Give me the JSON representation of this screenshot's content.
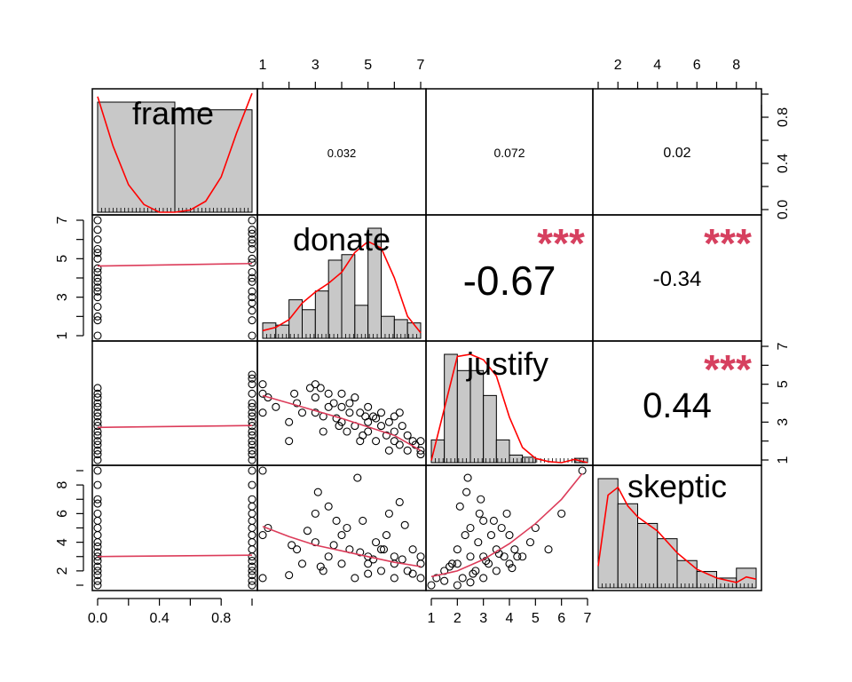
{
  "chart_data": {
    "type": "scatter",
    "title": "",
    "variables": [
      "frame",
      "donate",
      "justify",
      "skeptic"
    ],
    "ranges": {
      "frame": [
        0,
        1
      ],
      "donate": [
        1,
        7
      ],
      "justify": [
        1,
        7
      ],
      "skeptic": [
        1,
        9
      ]
    },
    "ticks": {
      "frame": [
        "0.0",
        "0.4",
        "0.8"
      ],
      "donate": [
        "1",
        "3",
        "5",
        "7"
      ],
      "justify": [
        "1",
        "2",
        "3",
        "4",
        "5",
        "6",
        "7"
      ],
      "justify_right": [
        "1",
        "3",
        "5",
        "7"
      ],
      "skeptic": [
        "2",
        "4",
        "6",
        "8"
      ],
      "hist_scale": [
        "0.0",
        "0.4",
        "0.8"
      ]
    },
    "correlations": [
      {
        "pair": [
          "frame",
          "donate"
        ],
        "r": "0.032",
        "stars": ""
      },
      {
        "pair": [
          "frame",
          "justify"
        ],
        "r": "0.072",
        "stars": ""
      },
      {
        "pair": [
          "frame",
          "skeptic"
        ],
        "r": "0.02",
        "stars": ""
      },
      {
        "pair": [
          "donate",
          "justify"
        ],
        "r": "-0.67",
        "stars": "***"
      },
      {
        "pair": [
          "donate",
          "skeptic"
        ],
        "r": "-0.34",
        "stars": "***"
      },
      {
        "pair": [
          "justify",
          "skeptic"
        ],
        "r": "0.44",
        "stars": "***"
      }
    ],
    "histograms": {
      "frame": {
        "edges": [
          0,
          0.5,
          1
        ],
        "heights": [
          1.0,
          0.93
        ]
      },
      "donate": {
        "edges": [
          1,
          1.5,
          2,
          2.5,
          3,
          3.5,
          4,
          4.5,
          5,
          5.5,
          6,
          6.5,
          7
        ],
        "heights": [
          0.14,
          0.12,
          0.35,
          0.26,
          0.43,
          0.71,
          0.76,
          0.3,
          1.0,
          0.2,
          0.17,
          0.14
        ]
      },
      "justify": {
        "edges": [
          1,
          1.5,
          2,
          2.5,
          3,
          3.5,
          4,
          4.5,
          5,
          5.5,
          6,
          6.5,
          7
        ],
        "heights": [
          0.21,
          1.0,
          0.85,
          0.85,
          0.62,
          0.21,
          0.07,
          0.05,
          0.0,
          0.0,
          0.0,
          0.04
        ]
      },
      "skeptic": {
        "edges": [
          1,
          2,
          3,
          4,
          5,
          6,
          7,
          8,
          9
        ],
        "heights": [
          1.0,
          0.77,
          0.59,
          0.45,
          0.25,
          0.15,
          0.09,
          0.18
        ]
      }
    },
    "densities": {
      "frame": [
        [
          0,
          1.05
        ],
        [
          0.1,
          0.6
        ],
        [
          0.2,
          0.25
        ],
        [
          0.3,
          0.07
        ],
        [
          0.4,
          0.0
        ],
        [
          0.5,
          0.0
        ],
        [
          0.6,
          0.02
        ],
        [
          0.7,
          0.1
        ],
        [
          0.8,
          0.32
        ],
        [
          0.9,
          0.72
        ],
        [
          1,
          1.08
        ]
      ],
      "donate": [
        [
          1,
          0.07
        ],
        [
          1.5,
          0.1
        ],
        [
          2,
          0.17
        ],
        [
          2.5,
          0.32
        ],
        [
          3,
          0.42
        ],
        [
          3.5,
          0.5
        ],
        [
          4,
          0.6
        ],
        [
          4.5,
          0.78
        ],
        [
          5,
          0.88
        ],
        [
          5.5,
          0.82
        ],
        [
          6,
          0.55
        ],
        [
          6.5,
          0.2
        ],
        [
          7,
          0.05
        ]
      ],
      "justify": [
        [
          1,
          0.02
        ],
        [
          1.5,
          0.5
        ],
        [
          2,
          0.98
        ],
        [
          2.5,
          1.0
        ],
        [
          3,
          0.95
        ],
        [
          3.5,
          0.8
        ],
        [
          4,
          0.42
        ],
        [
          4.5,
          0.14
        ],
        [
          5,
          0.04
        ],
        [
          5.5,
          0.01
        ],
        [
          6,
          0.0
        ],
        [
          6.5,
          0.03
        ],
        [
          7,
          0.0
        ]
      ],
      "skeptic": [
        [
          1,
          0.2
        ],
        [
          1.5,
          0.85
        ],
        [
          2,
          0.92
        ],
        [
          2.5,
          0.75
        ],
        [
          3,
          0.65
        ],
        [
          4,
          0.52
        ],
        [
          5,
          0.32
        ],
        [
          6,
          0.17
        ],
        [
          7,
          0.09
        ],
        [
          8,
          0.05
        ],
        [
          8.5,
          0.1
        ],
        [
          9,
          0.08
        ]
      ]
    },
    "scatter_points": {
      "frame_vs_donate": {
        "x": [
          0,
          0,
          0,
          0,
          0,
          0,
          0,
          0,
          0,
          0,
          0,
          0,
          0,
          0,
          0,
          0,
          0,
          1,
          1,
          1,
          1,
          1,
          1,
          1,
          1,
          1,
          1,
          1,
          1,
          1,
          1,
          1,
          1,
          1
        ],
        "y": [
          1,
          1.8,
          2,
          2.5,
          3,
          3.3,
          3.5,
          3.8,
          4,
          4.3,
          4.5,
          5,
          5.3,
          5.5,
          6,
          6.5,
          7,
          1,
          1.8,
          2.3,
          2.7,
          3,
          3.3,
          3.8,
          4,
          4.3,
          4.8,
          5,
          5.5,
          5.8,
          6,
          6.3,
          6.5,
          7
        ]
      },
      "frame_vs_justify": {
        "x": [
          0,
          0,
          0,
          0,
          0,
          0,
          0,
          0,
          0,
          0,
          0,
          0,
          0,
          0,
          0,
          0,
          1,
          1,
          1,
          1,
          1,
          1,
          1,
          1,
          1,
          1,
          1,
          1,
          1,
          1,
          1,
          1,
          1
        ],
        "y": [
          1,
          1.3,
          1.5,
          1.8,
          2,
          2.3,
          2.5,
          2.8,
          3,
          3.3,
          3.5,
          3.8,
          4,
          4.3,
          4.5,
          4.8,
          1,
          1.3,
          1.5,
          1.8,
          2,
          2.3,
          2.5,
          2.8,
          3,
          3.3,
          3.5,
          3.8,
          4,
          4.5,
          5,
          5.3,
          5.5
        ]
      },
      "frame_vs_skeptic": {
        "x": [
          0,
          0,
          0,
          0,
          0,
          0,
          0,
          0,
          0,
          0,
          0,
          0,
          0,
          0,
          0,
          0,
          0,
          0,
          1,
          1,
          1,
          1,
          1,
          1,
          1,
          1,
          1,
          1,
          1,
          1,
          1,
          1,
          1,
          1,
          1
        ],
        "y": [
          1,
          1.3,
          1.7,
          2,
          2.3,
          2.7,
          3,
          3.3,
          3.7,
          4,
          4.5,
          5,
          5.5,
          6,
          6.7,
          7,
          8,
          9,
          1,
          1.3,
          1.7,
          2,
          2.3,
          2.7,
          3,
          3.5,
          4,
          4.5,
          5,
          5.5,
          6,
          6.5,
          7,
          8,
          9
        ]
      },
      "donate_vs_justify": {
        "x": [
          1,
          1,
          1,
          1.2,
          2,
          2,
          2.3,
          2.5,
          3,
          3,
          3,
          3.2,
          3.3,
          3.5,
          3.5,
          3.7,
          3.8,
          4,
          4,
          4,
          4.2,
          4.3,
          4.5,
          4.5,
          4.7,
          4.8,
          5,
          5,
          5,
          5.2,
          5.3,
          5.5,
          5.5,
          5.7,
          5.8,
          6,
          6,
          6,
          6.2,
          6.3,
          6.5,
          6.5,
          6.7,
          7,
          7,
          7,
          1.5,
          2.8,
          4.3,
          5.3,
          6.8,
          3.3,
          4.7,
          5.8,
          6.2,
          2.2,
          3.9,
          4.9
        ],
        "y": [
          4.5,
          5,
          3.5,
          4.3,
          2,
          3,
          4,
          3.5,
          5,
          4.3,
          3.5,
          4.8,
          3.3,
          4.5,
          3.8,
          4,
          3.2,
          4.5,
          3.8,
          3,
          2.5,
          3.5,
          4.3,
          2.8,
          3.5,
          2.3,
          3.8,
          3,
          2.5,
          3.3,
          2,
          3.5,
          2.8,
          2.3,
          3,
          3.3,
          2.5,
          2,
          1.8,
          2.8,
          2.3,
          1.5,
          2,
          1.5,
          1.3,
          2,
          3.8,
          4.8,
          4,
          3.2,
          1.8,
          2.5,
          2,
          1.5,
          3.5,
          4.5,
          2.8,
          3.3
        ]
      },
      "donate_vs_skeptic": {
        "x": [
          1,
          1,
          1,
          1.2,
          2,
          2.3,
          2.5,
          3,
          3,
          3.3,
          3.5,
          3.5,
          3.8,
          4,
          4,
          4.3,
          4.5,
          4.8,
          5,
          5,
          5,
          5.3,
          5.5,
          5.5,
          5.8,
          6,
          6,
          6,
          6.3,
          6.5,
          6.7,
          7,
          7,
          7,
          2.7,
          3.2,
          3.7,
          4.2,
          4.7,
          5.2,
          5.7,
          6.2,
          6.7,
          3.1,
          4.6,
          5.6,
          2.1,
          6.4
        ],
        "y": [
          9,
          1.5,
          4.5,
          5,
          1.7,
          3.5,
          2.5,
          6,
          4,
          2,
          6.5,
          3,
          5.5,
          4.5,
          2.5,
          3.5,
          1.5,
          5.5,
          3,
          2.5,
          1.8,
          4,
          3.5,
          2,
          6,
          3,
          2.5,
          1.5,
          2.8,
          2,
          3.5,
          2.5,
          1.5,
          3,
          4.8,
          2.3,
          3.8,
          5,
          3.3,
          2.8,
          4.5,
          6.8,
          1.8,
          7.5,
          8.5,
          3.5,
          3.8,
          5.2
        ],
        "loess": [
          [
            1,
            5.1
          ],
          [
            2,
            4.4
          ],
          [
            3,
            3.8
          ],
          [
            4,
            3.4
          ],
          [
            5,
            3.0
          ],
          [
            6,
            2.6
          ],
          [
            7,
            2.3
          ]
        ]
      },
      "justify_vs_skeptic": {
        "x": [
          1,
          1.2,
          1.5,
          1.5,
          1.8,
          2,
          2,
          2,
          2.2,
          2.3,
          2.5,
          2.5,
          2.5,
          2.7,
          2.8,
          3,
          3,
          3,
          3.2,
          3.3,
          3.5,
          3.5,
          3.7,
          3.8,
          4,
          4,
          4.2,
          4.5,
          4.8,
          5,
          5.5,
          6,
          6.8,
          2.1,
          2.4,
          2.9,
          3.4,
          3.9,
          4.3,
          1.7,
          2.6,
          3.1,
          3.6,
          4.1,
          2.35,
          2.85
        ],
        "y": [
          1,
          1.5,
          2,
          1.3,
          2.5,
          1,
          2.5,
          3.5,
          1.5,
          4.5,
          1.2,
          3,
          5,
          2,
          4,
          1.5,
          3,
          5.5,
          2.5,
          4.5,
          2,
          3.5,
          5,
          3,
          2.5,
          4.5,
          3.5,
          3,
          4,
          5,
          3.5,
          6,
          9,
          6.5,
          8.5,
          7,
          5.5,
          6,
          3,
          2.3,
          1.8,
          2.7,
          3.2,
          2.2,
          7.5,
          6
        ],
        "loess": [
          [
            1,
            1.6
          ],
          [
            2,
            2.0
          ],
          [
            3,
            2.8
          ],
          [
            4,
            3.9
          ],
          [
            5,
            5.3
          ],
          [
            6,
            7.0
          ],
          [
            6.8,
            8.8
          ]
        ]
      }
    },
    "flat_lines": {
      "frame_vs_donate": [
        4.62,
        4.75
      ],
      "frame_vs_justify": [
        2.72,
        2.82
      ],
      "frame_vs_skeptic": [
        3.0,
        3.1
      ]
    },
    "trend_lines": {
      "donate_vs_justify": [
        [
          1,
          4.4
        ],
        [
          2,
          4.0
        ],
        [
          3,
          3.6
        ],
        [
          4,
          3.2
        ],
        [
          5,
          2.75
        ],
        [
          6,
          2.3
        ],
        [
          7,
          1.5
        ]
      ]
    }
  }
}
